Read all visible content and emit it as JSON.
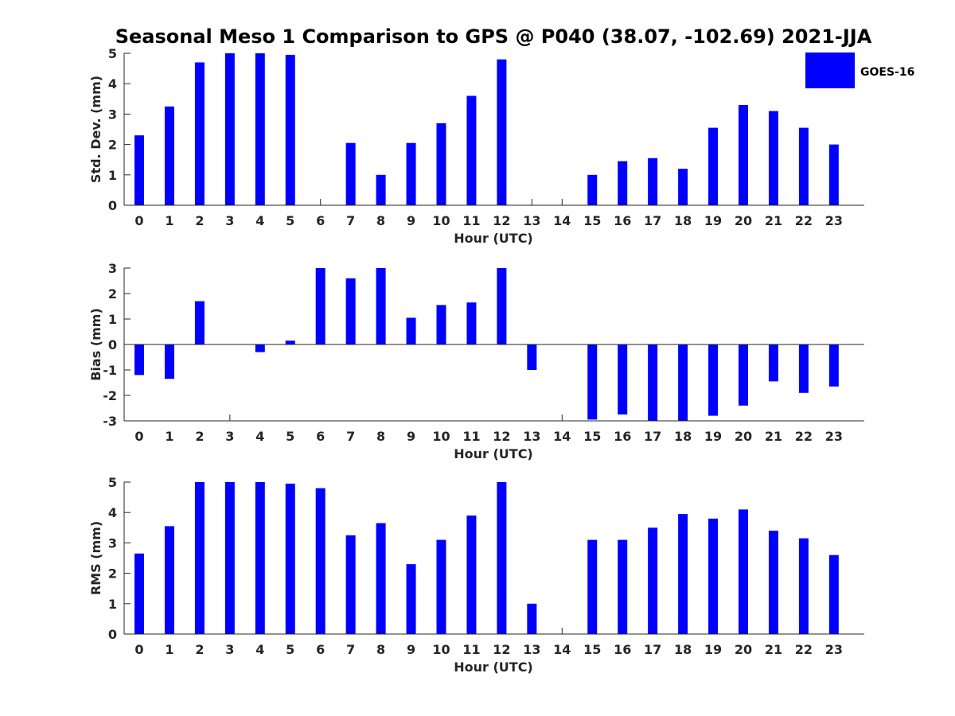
{
  "chart_data": {
    "type": "bar",
    "title": "Seasonal Meso 1 Comparison to GPS @ P040 (38.07, -102.69) 2021-JJA",
    "legend": {
      "label": "GOES-16",
      "placement": "top-right",
      "color": "#0000ff"
    },
    "categories": [
      "0",
      "1",
      "2",
      "3",
      "4",
      "5",
      "6",
      "7",
      "8",
      "9",
      "10",
      "11",
      "12",
      "13",
      "14",
      "15",
      "16",
      "17",
      "18",
      "19",
      "20",
      "21",
      "22",
      "23"
    ],
    "panels": [
      {
        "id": "std",
        "ylabel": "Std. Dev. (mm)",
        "xlabel": "Hour (UTC)",
        "ylim": [
          0,
          5
        ],
        "yticks": [
          0,
          1,
          2,
          3,
          4,
          5
        ],
        "values": [
          2.3,
          3.25,
          4.7,
          5.0,
          5.0,
          4.95,
          null,
          2.05,
          1.0,
          2.05,
          2.7,
          3.6,
          4.8,
          null,
          null,
          1.0,
          1.45,
          1.55,
          1.2,
          2.55,
          3.3,
          3.1,
          2.55,
          2.0
        ]
      },
      {
        "id": "bias",
        "ylabel": "Bias (mm)",
        "xlabel": "Hour (UTC)",
        "ylim": [
          -3,
          3
        ],
        "yticks": [
          -3,
          -2,
          -1,
          0,
          1,
          2,
          3
        ],
        "values": [
          -1.2,
          -1.35,
          1.7,
          null,
          -0.3,
          0.15,
          3.0,
          2.6,
          3.0,
          1.05,
          1.55,
          1.65,
          3.0,
          -1.0,
          null,
          -2.95,
          -2.75,
          -3.0,
          -3.0,
          -2.8,
          -2.4,
          -1.45,
          -1.9,
          -1.65
        ]
      },
      {
        "id": "rms",
        "ylabel": "RMS (mm)",
        "xlabel": "Hour (UTC)",
        "ylim": [
          0,
          5
        ],
        "yticks": [
          0,
          1,
          2,
          3,
          4,
          5
        ],
        "values": [
          2.65,
          3.55,
          5.0,
          5.0,
          5.0,
          4.95,
          4.8,
          3.25,
          3.65,
          2.3,
          3.1,
          3.9,
          5.0,
          1.0,
          null,
          3.1,
          3.1,
          3.5,
          3.95,
          3.8,
          4.1,
          3.4,
          3.15,
          2.6
        ]
      }
    ]
  }
}
